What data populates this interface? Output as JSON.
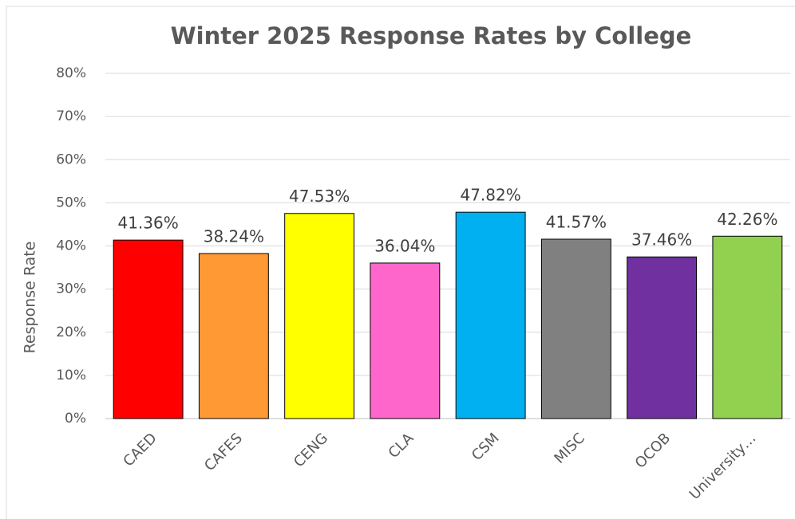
{
  "chart_data": {
    "type": "bar",
    "title": "Winter 2025 Response Rates by College",
    "y_label": "Response Rate",
    "categories": [
      "CAED",
      "CAFES",
      "CENG",
      "CLA",
      "CSM",
      "MISC",
      "OCOB",
      "University…"
    ],
    "values": [
      41.36,
      38.24,
      47.53,
      36.04,
      47.82,
      41.57,
      37.46,
      42.26
    ],
    "value_labels": [
      "41.36%",
      "38.24%",
      "47.53%",
      "36.04%",
      "47.82%",
      "41.57%",
      "37.46%",
      "42.26%"
    ],
    "colors": [
      "#ff0000",
      "#ff9933",
      "#ffff00",
      "#ff66cc",
      "#00b0f0",
      "#808080",
      "#7030a0",
      "#92d050"
    ],
    "ylim": [
      0,
      80
    ],
    "yticks": [
      {
        "value": 0,
        "label": "0%"
      },
      {
        "value": 10,
        "label": "10%"
      },
      {
        "value": 20,
        "label": "20%"
      },
      {
        "value": 30,
        "label": "30%"
      },
      {
        "value": 40,
        "label": "40%"
      },
      {
        "value": 50,
        "label": "50%"
      },
      {
        "value": 60,
        "label": "60%"
      },
      {
        "value": 70,
        "label": "70%"
      },
      {
        "value": 80,
        "label": "80%"
      }
    ],
    "grid": true
  }
}
